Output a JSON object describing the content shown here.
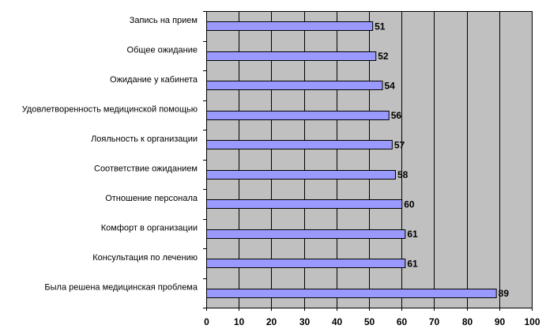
{
  "chart_data": {
    "type": "bar",
    "orientation": "horizontal",
    "categories": [
      "Запись на прием",
      "Общее ожидание",
      "Ожидание у кабинета",
      "Удовлетворенность медицинской помощью",
      "Лояльность к организации",
      "Соответствие ожиданием",
      "Отношение персонала",
      "Комфорт в организации",
      "Консультация по лечению",
      "Была решена медицинская проблема"
    ],
    "values": [
      51,
      52,
      54,
      56,
      57,
      58,
      60,
      61,
      61,
      89
    ],
    "data_labels": [
      "51",
      "52",
      "54",
      "56",
      "57",
      "58",
      "60",
      "61",
      "61",
      "89"
    ],
    "xlim": [
      0,
      100
    ],
    "x_ticks": [
      "0",
      "10",
      "20",
      "30",
      "40",
      "50",
      "60",
      "70",
      "80",
      "90",
      "100"
    ],
    "title": "",
    "xlabel": "",
    "ylabel": "",
    "grid": "vertical",
    "legend": "none",
    "colors": {
      "plot_background": "#c0c0c0",
      "bar_fill": "#9999ff",
      "bar_stroke": "#000000",
      "gridline": "#000000"
    }
  }
}
